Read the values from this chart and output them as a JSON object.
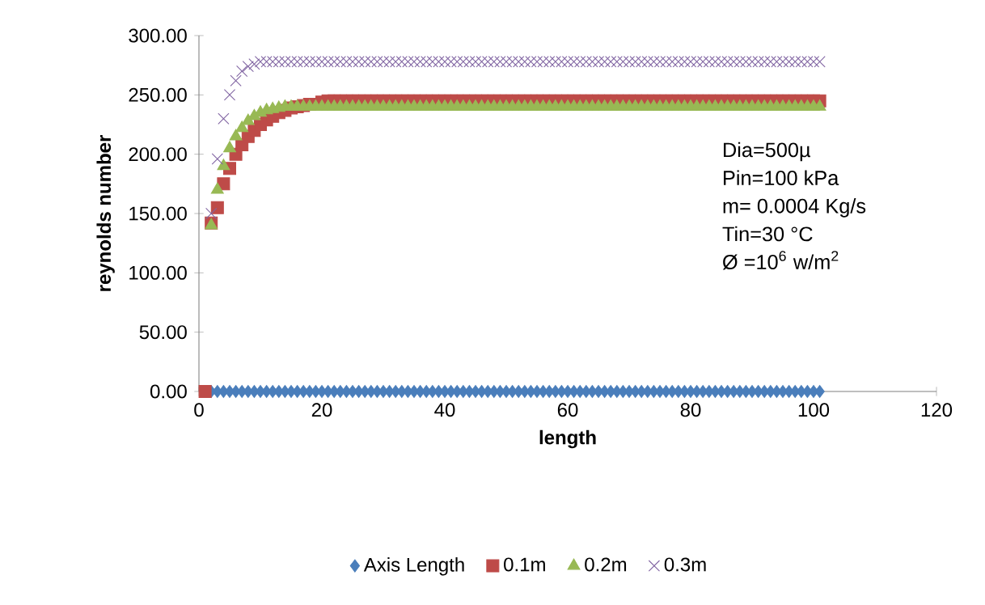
{
  "chart_data": {
    "type": "scatter",
    "xlabel": "length",
    "ylabel": "reynolds number",
    "x": [
      1,
      2,
      3,
      4,
      5,
      6,
      7,
      8,
      9,
      10,
      11,
      12,
      13,
      14,
      15,
      16,
      17,
      18,
      19,
      20,
      21,
      22,
      23,
      24,
      25,
      26,
      27,
      28,
      29,
      30,
      31,
      32,
      33,
      34,
      35,
      36,
      37,
      38,
      39,
      40,
      41,
      42,
      43,
      44,
      45,
      46,
      47,
      48,
      49,
      50,
      51,
      52,
      53,
      54,
      55,
      56,
      57,
      58,
      59,
      60,
      61,
      62,
      63,
      64,
      65,
      66,
      67,
      68,
      69,
      70,
      71,
      72,
      73,
      74,
      75,
      76,
      77,
      78,
      79,
      80,
      81,
      82,
      83,
      84,
      85,
      86,
      87,
      88,
      89,
      90,
      91,
      92,
      93,
      94,
      95,
      96,
      97,
      98,
      99,
      100,
      101
    ],
    "series": [
      {
        "name": "Axis Length",
        "color": "#4a7ebb",
        "marker": "diamond",
        "values": [
          null,
          0,
          0,
          0,
          0,
          0,
          0,
          0,
          0,
          0,
          0,
          0,
          0,
          0,
          0,
          0,
          0,
          0,
          0,
          0,
          0,
          0,
          0,
          0,
          0,
          0,
          0,
          0,
          0,
          0,
          0,
          0,
          0,
          0,
          0,
          0,
          0,
          0,
          0,
          0,
          0,
          0,
          0,
          0,
          0,
          0,
          0,
          0,
          0,
          0,
          0,
          0,
          0,
          0,
          0,
          0,
          0,
          0,
          0,
          0,
          0,
          0,
          0,
          0,
          0,
          0,
          0,
          0,
          0,
          0,
          0,
          0,
          0,
          0,
          0,
          0,
          0,
          0,
          0,
          0,
          0,
          0,
          0,
          0,
          0,
          0,
          0,
          0,
          0,
          0,
          0,
          0,
          0,
          0,
          0,
          0,
          0,
          0,
          0,
          0,
          0
        ]
      },
      {
        "name": "0.1m",
        "color": "#be4b48",
        "marker": "square",
        "values": [
          0,
          142,
          155,
          175,
          188,
          200,
          208,
          215,
          220,
          225,
          229,
          232,
          235,
          237,
          239,
          240,
          241,
          242,
          null,
          244,
          245,
          245,
          245,
          245,
          245,
          245,
          245,
          245,
          245,
          245,
          245,
          245,
          245,
          245,
          245,
          245,
          245,
          245,
          245,
          245,
          245,
          245,
          245,
          245,
          245,
          245,
          245,
          245,
          245,
          245,
          245,
          245,
          245,
          245,
          245,
          245,
          245,
          245,
          245,
          245,
          245,
          245,
          245,
          245,
          245,
          245,
          245,
          245,
          245,
          245,
          245,
          245,
          245,
          245,
          245,
          245,
          245,
          245,
          245,
          245,
          245,
          245,
          245,
          245,
          245,
          245,
          245,
          245,
          245,
          245,
          245,
          245,
          245,
          245,
          245,
          245,
          245,
          245,
          245,
          245,
          245
        ]
      },
      {
        "name": "0.2m",
        "color": "#98b954",
        "marker": "triangle",
        "values": [
          null,
          140,
          170,
          190,
          205,
          215,
          222,
          228,
          232,
          235,
          237,
          238,
          239,
          240,
          240,
          240,
          240,
          240,
          240,
          240,
          240,
          240,
          240,
          240,
          240,
          240,
          240,
          240,
          240,
          240,
          240,
          240,
          240,
          240,
          240,
          240,
          240,
          240,
          240,
          240,
          240,
          240,
          240,
          240,
          240,
          240,
          240,
          240,
          240,
          240,
          240,
          240,
          240,
          240,
          240,
          240,
          240,
          240,
          240,
          240,
          240,
          240,
          240,
          240,
          240,
          240,
          240,
          240,
          240,
          240,
          240,
          240,
          240,
          240,
          240,
          240,
          240,
          240,
          240,
          240,
          240,
          240,
          240,
          240,
          240,
          240,
          240,
          240,
          240,
          240,
          240,
          240,
          240,
          240,
          240,
          240,
          240,
          240,
          240,
          240,
          240
        ]
      },
      {
        "name": "0.3m",
        "color": "#8064a2",
        "marker": "cross",
        "values": [
          null,
          150,
          196,
          230,
          250,
          262,
          270,
          274,
          276,
          278,
          278,
          278,
          278,
          278,
          278,
          278,
          278,
          278,
          278,
          278,
          278,
          278,
          278,
          278,
          278,
          278,
          278,
          278,
          278,
          278,
          278,
          278,
          278,
          278,
          278,
          278,
          278,
          278,
          278,
          278,
          278,
          278,
          278,
          278,
          278,
          278,
          278,
          278,
          278,
          278,
          278,
          278,
          278,
          278,
          278,
          278,
          278,
          278,
          278,
          278,
          278,
          278,
          278,
          278,
          278,
          278,
          278,
          278,
          278,
          278,
          278,
          278,
          278,
          278,
          278,
          278,
          278,
          278,
          278,
          278,
          278,
          278,
          278,
          278,
          278,
          278,
          278,
          278,
          278,
          278,
          278,
          278,
          278,
          278,
          278,
          278,
          278,
          278,
          278,
          278,
          278
        ]
      }
    ],
    "xlim": [
      0,
      120
    ],
    "xticks": [
      0,
      20,
      40,
      60,
      80,
      100,
      120
    ],
    "ylim": [
      0,
      300
    ],
    "yticks": [
      {
        "value": 0,
        "label": "0.00"
      },
      {
        "value": 50,
        "label": "50.00"
      },
      {
        "value": 100,
        "label": "100.00"
      },
      {
        "value": 150,
        "label": "150.00"
      },
      {
        "value": 200,
        "label": "200.00"
      },
      {
        "value": 250,
        "label": "250.00"
      },
      {
        "value": 300,
        "label": "300.00"
      }
    ],
    "annotations": [
      "Dia=500µ",
      "Pin=100 kPa",
      "m= 0.0004 Kg/s",
      "Tin=30 °C",
      "Ø =10$^{6}$ w/m$^{2}$"
    ],
    "grid": false,
    "legend": "bottom"
  }
}
